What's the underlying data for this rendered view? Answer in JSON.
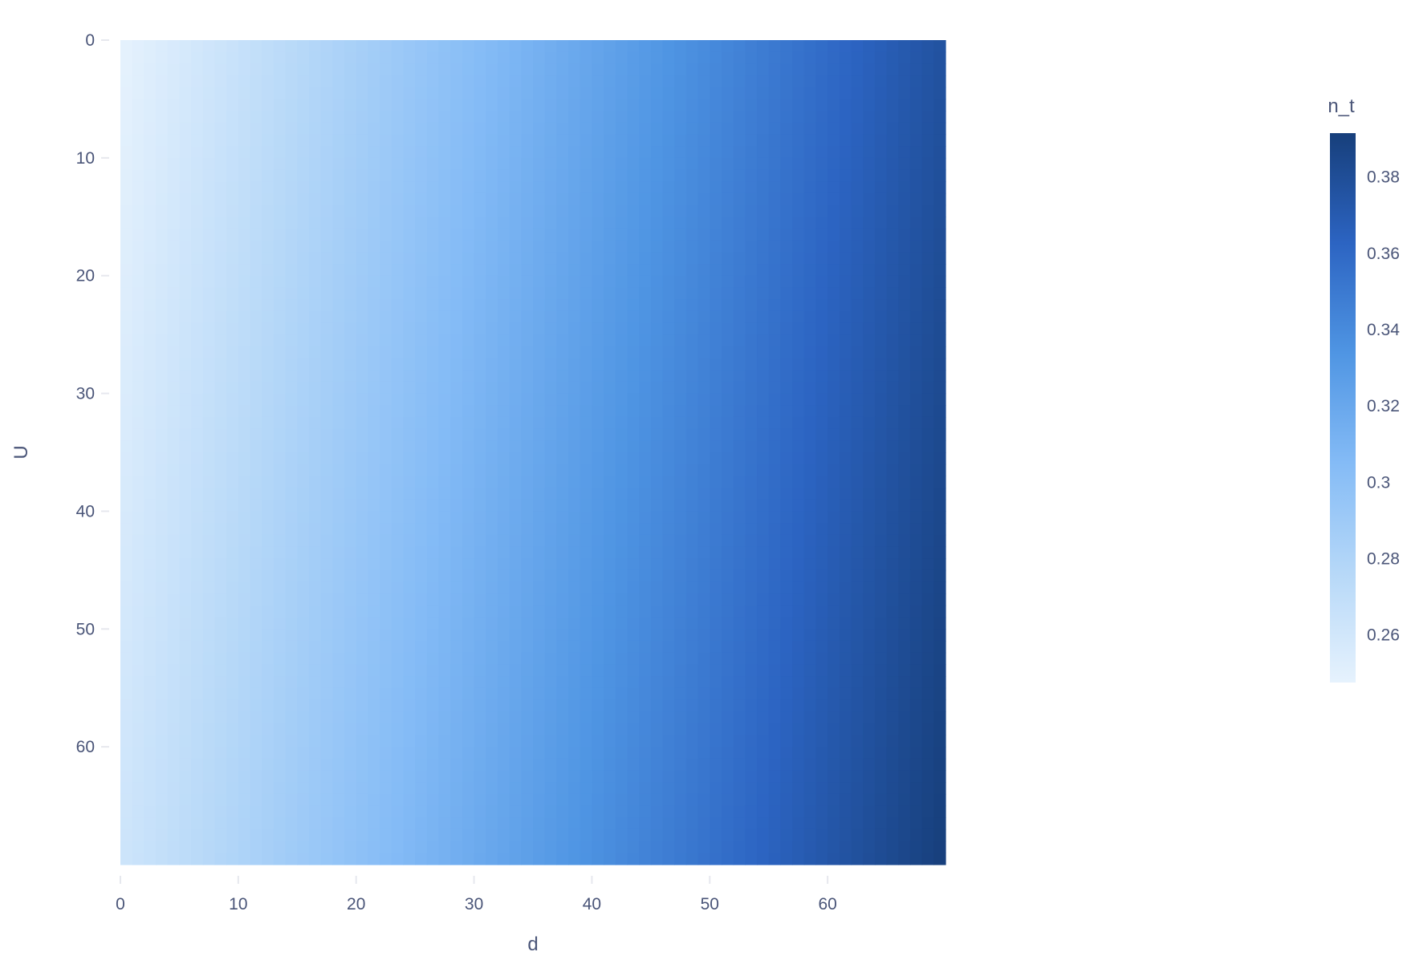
{
  "chart_data": {
    "type": "heatmap",
    "title": "",
    "xlabel": "d",
    "ylabel": "U",
    "x_range": [
      0,
      70
    ],
    "y_range": [
      0,
      70
    ],
    "y_reversed": true,
    "x_ticks": [
      0,
      10,
      20,
      30,
      40,
      50,
      60
    ],
    "y_ticks": [
      0,
      10,
      20,
      30,
      40,
      50,
      60
    ],
    "colorbar": {
      "title": "n_t",
      "min": 0.2475,
      "max": 0.3915,
      "ticks": [
        0.26,
        0.28,
        0.3,
        0.32,
        0.34,
        0.36,
        0.38
      ],
      "tick_labels": [
        "0.26",
        "0.28",
        "0.3",
        "0.32",
        "0.34",
        "0.36",
        "0.38"
      ],
      "colorscale": [
        [
          0.0,
          "#e6f2fd"
        ],
        [
          0.2,
          "#b6d8f8"
        ],
        [
          0.4,
          "#84bbf6"
        ],
        [
          0.6,
          "#4f95e3"
        ],
        [
          0.8,
          "#2c64c2"
        ],
        [
          1.0,
          "#173f7b"
        ]
      ]
    },
    "value_model": {
      "description_of_surface": "n_t increases with d, slightly with U",
      "base": 0.2475,
      "d_coef": 0.00185,
      "u_coef": 0.00021
    }
  }
}
